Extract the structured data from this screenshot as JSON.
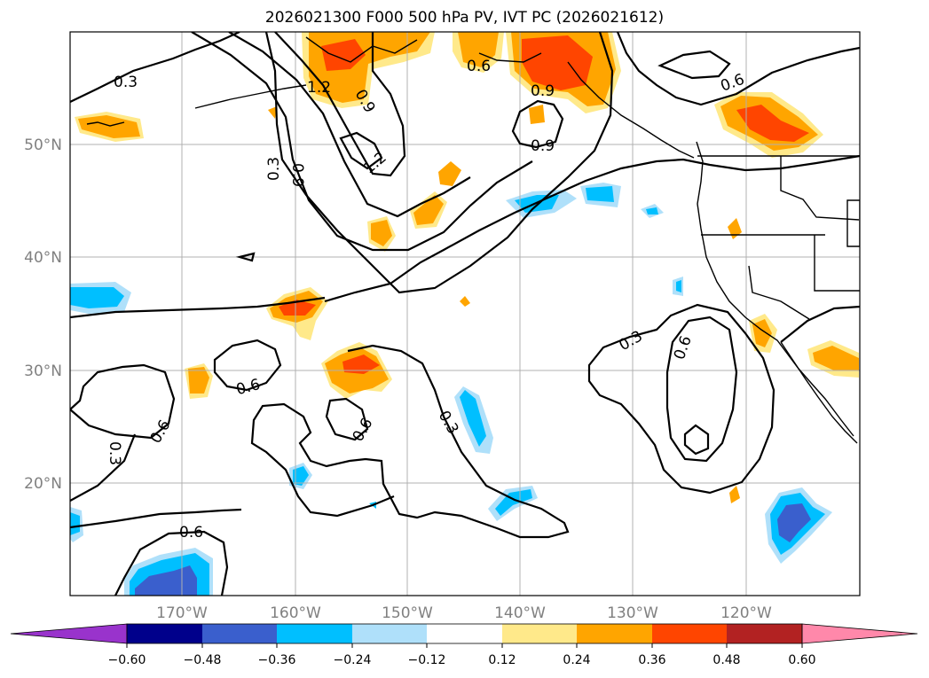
{
  "title": "2026021300 F000 500 hPa PV, IVT PC (2026021612)",
  "map": {
    "lat_labels": [
      "50°N",
      "40°N",
      "30°N",
      "20°N"
    ],
    "lon_labels": [
      "170°W",
      "160°W",
      "150°W",
      "140°W",
      "130°W",
      "120°W"
    ],
    "contour_labels": [
      "0.3",
      "1.2",
      "0.9",
      "0.6",
      "0.9",
      "0.9",
      "0.6",
      "0.3",
      "0.9",
      "1.2",
      "0.6",
      "0.6",
      "0.6",
      "0.3",
      "0.6",
      "0.3",
      "0.3",
      "0.6",
      "0.3"
    ]
  },
  "colorbar": {
    "ticks": [
      "−0.60",
      "−0.48",
      "−0.36",
      "−0.24",
      "−0.12",
      "0.12",
      "0.24",
      "0.36",
      "0.48",
      "0.60"
    ],
    "colors": [
      "#9933cc",
      "#00008b",
      "#3a5fcd",
      "#00bfff",
      "#afe0fa",
      "#ffffff",
      "#ffe98a",
      "#ffa500",
      "#ff4500",
      "#b22222",
      "#ff88aa"
    ]
  },
  "colors": {
    "neg_light": "#afe0fa",
    "neg_mid": "#00bfff",
    "neg_strong": "#3a5fcd",
    "pos_light": "#ffe98a",
    "pos_mid": "#ffa500",
    "pos_strong": "#ff4500"
  }
}
